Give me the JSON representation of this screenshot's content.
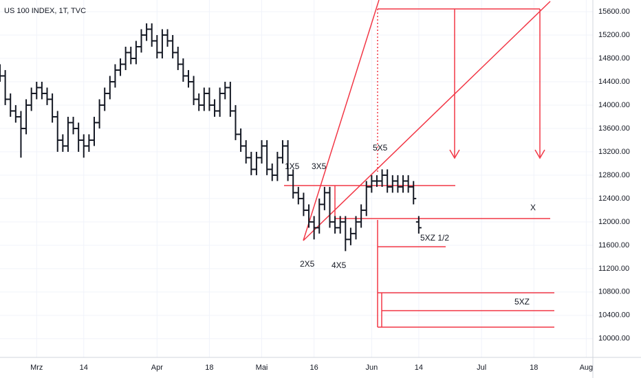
{
  "chart_data": {
    "type": "ohlc",
    "title": "US 100 INDEX, 1T, TVC",
    "x": [
      -7,
      -6,
      -5,
      -4,
      -3,
      -2,
      -1,
      0,
      1,
      2,
      3,
      4,
      5,
      6,
      7,
      8,
      9,
      10,
      11,
      12,
      13,
      14,
      15,
      16,
      17,
      18,
      19,
      20,
      21,
      22,
      23,
      24,
      25,
      26,
      27,
      28,
      29,
      30,
      31,
      32,
      33,
      34,
      35,
      36,
      37,
      38,
      39,
      40,
      41,
      42,
      43,
      44,
      45,
      46,
      47,
      48,
      49,
      50,
      51,
      52,
      53,
      54,
      55,
      56,
      57,
      58,
      59,
      60,
      61,
      62,
      63,
      64,
      65,
      66,
      67,
      68,
      69,
      70,
      71,
      72,
      73
    ],
    "open": [
      14600,
      14500,
      14100,
      13900,
      13800,
      13600,
      14000,
      14200,
      14300,
      14200,
      14100,
      13800,
      13400,
      13300,
      13700,
      13600,
      13400,
      13300,
      13400,
      13700,
      14000,
      14200,
      14400,
      14600,
      14700,
      14900,
      14800,
      15000,
      15200,
      15300,
      15100,
      14900,
      15200,
      15100,
      14900,
      14700,
      14500,
      14400,
      14100,
      14000,
      14200,
      14000,
      13900,
      14200,
      14300,
      13900,
      13500,
      13300,
      13100,
      12900,
      13100,
      13300,
      12900,
      12800,
      13100,
      13300,
      12800,
      12500,
      12400,
      12200,
      12000,
      11900,
      12300,
      12500,
      12000,
      11900,
      12000,
      11700,
      11800,
      12000,
      12200,
      12600,
      12700,
      12700,
      12800,
      12600,
      12700,
      12600,
      12700,
      12600,
      12000
    ],
    "high": [
      14700,
      14600,
      14200,
      14000,
      13900,
      14100,
      14300,
      14400,
      14400,
      14300,
      14200,
      13900,
      13500,
      13800,
      13800,
      13700,
      13500,
      13500,
      13800,
      14100,
      14300,
      14500,
      14700,
      14800,
      15000,
      15000,
      15100,
      15300,
      15400,
      15400,
      15200,
      15300,
      15300,
      15200,
      15000,
      14800,
      14600,
      14500,
      14200,
      14300,
      14300,
      14100,
      14300,
      14400,
      14400,
      14000,
      13600,
      13400,
      13200,
      13200,
      13400,
      13400,
      13000,
      13200,
      13400,
      13400,
      12900,
      12600,
      12500,
      12300,
      12100,
      12400,
      12600,
      12600,
      12100,
      12100,
      12100,
      11900,
      12100,
      12300,
      12700,
      12800,
      12800,
      12900,
      12900,
      12800,
      12800,
      12800,
      12800,
      12700,
      12100
    ],
    "low": [
      14400,
      14000,
      13800,
      13700,
      13100,
      13500,
      13900,
      14100,
      14100,
      14000,
      13700,
      13200,
      13200,
      13200,
      13500,
      13200,
      13100,
      13200,
      13300,
      13600,
      13900,
      14100,
      14300,
      14500,
      14600,
      14700,
      14700,
      14900,
      15100,
      15000,
      14800,
      14800,
      15000,
      14800,
      14600,
      14400,
      14300,
      14000,
      13900,
      13900,
      13900,
      13800,
      13800,
      14100,
      13800,
      13400,
      13200,
      13000,
      12800,
      12800,
      13000,
      12800,
      12700,
      12700,
      13000,
      12700,
      12400,
      12300,
      12100,
      11900,
      11700,
      11800,
      12200,
      11900,
      11800,
      11800,
      11500,
      11600,
      11700,
      11900,
      12100,
      12500,
      12600,
      12600,
      12500,
      12500,
      12500,
      12500,
      12500,
      12300,
      11800
    ],
    "close": [
      14500,
      14100,
      13900,
      13800,
      13600,
      14000,
      14200,
      14300,
      14200,
      14100,
      13800,
      13400,
      13300,
      13700,
      13600,
      13400,
      13300,
      13400,
      13700,
      14000,
      14200,
      14400,
      14600,
      14700,
      14900,
      14800,
      15000,
      15200,
      15300,
      15100,
      14900,
      15200,
      15100,
      14900,
      14700,
      14500,
      14400,
      14100,
      14000,
      14200,
      14000,
      13900,
      14200,
      14300,
      13900,
      13500,
      13300,
      13100,
      12900,
      13100,
      13300,
      12900,
      12800,
      13100,
      13300,
      12800,
      12500,
      12400,
      12200,
      12000,
      11900,
      12300,
      12500,
      12000,
      11900,
      12000,
      11700,
      11800,
      12000,
      12200,
      12600,
      12700,
      12700,
      12800,
      12600,
      12700,
      12600,
      12700,
      12600,
      12400,
      11900
    ],
    "color": "#131722",
    "xlim": [
      -7,
      106
    ],
    "xticks": [
      {
        "value": 0,
        "label": "Mrz"
      },
      {
        "value": 9,
        "label": "14"
      },
      {
        "value": 23,
        "label": "Apr"
      },
      {
        "value": 33,
        "label": "18"
      },
      {
        "value": 43,
        "label": "Mai"
      },
      {
        "value": 53,
        "label": "16"
      },
      {
        "value": 64,
        "label": "Jun"
      },
      {
        "value": 73,
        "label": "14"
      },
      {
        "value": 85,
        "label": "Jul"
      },
      {
        "value": 95,
        "label": "18"
      },
      {
        "value": 105,
        "label": "Aug"
      }
    ],
    "ylim": [
      9680,
      15800
    ],
    "yticks": [
      {
        "value": 10000,
        "label": "10000.00"
      },
      {
        "value": 10400,
        "label": "10400.00"
      },
      {
        "value": 10800,
        "label": "10800.00"
      },
      {
        "value": 11200,
        "label": "11200.00"
      },
      {
        "value": 11600,
        "label": "11600.00"
      },
      {
        "value": 12000,
        "label": "12000.00"
      },
      {
        "value": 12400,
        "label": "12400.00"
      },
      {
        "value": 12800,
        "label": "12800.00"
      },
      {
        "value": 13200,
        "label": "13200.00"
      },
      {
        "value": 13600,
        "label": "13600.00"
      },
      {
        "value": 14000,
        "label": "14000.00"
      },
      {
        "value": 14400,
        "label": "14400.00"
      },
      {
        "value": 14800,
        "label": "14800.00"
      },
      {
        "value": 15200,
        "label": "15200.00"
      },
      {
        "value": 15600,
        "label": "15600.00"
      }
    ],
    "grid": true,
    "annotations": [
      "1X5",
      "3X5",
      "5X5",
      "2X5",
      "4X5",
      "X",
      "5XZ 1/2",
      "5XZ"
    ]
  }
}
